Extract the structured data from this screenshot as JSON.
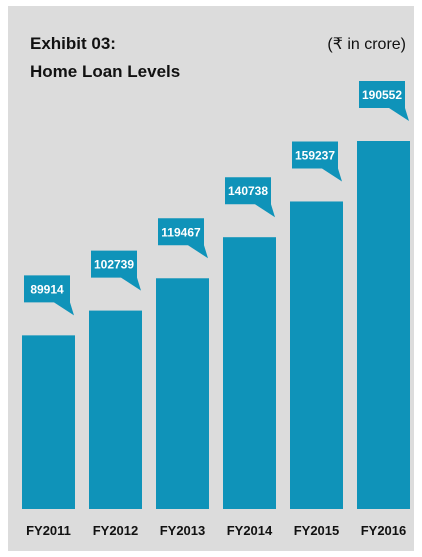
{
  "chart_data": {
    "type": "bar",
    "title": "Exhibit 03:",
    "subtitle": "Home Loan Levels",
    "unit_label": "(₹ in crore)",
    "categories": [
      "FY2011",
      "FY2012",
      "FY2013",
      "FY2014",
      "FY2015",
      "FY2016"
    ],
    "values": [
      89914,
      102739,
      119467,
      140738,
      159237,
      190552
    ],
    "data_labels": [
      "89914",
      "102739",
      "119467",
      "140738",
      "159237",
      "190552"
    ],
    "xlabel": "",
    "ylabel": "",
    "ylim": [
      0,
      200000
    ],
    "grid": false,
    "legend": "none",
    "colors": {
      "bar": "#0f93b9",
      "background": "#dcdcdc",
      "text": "#111111"
    }
  }
}
